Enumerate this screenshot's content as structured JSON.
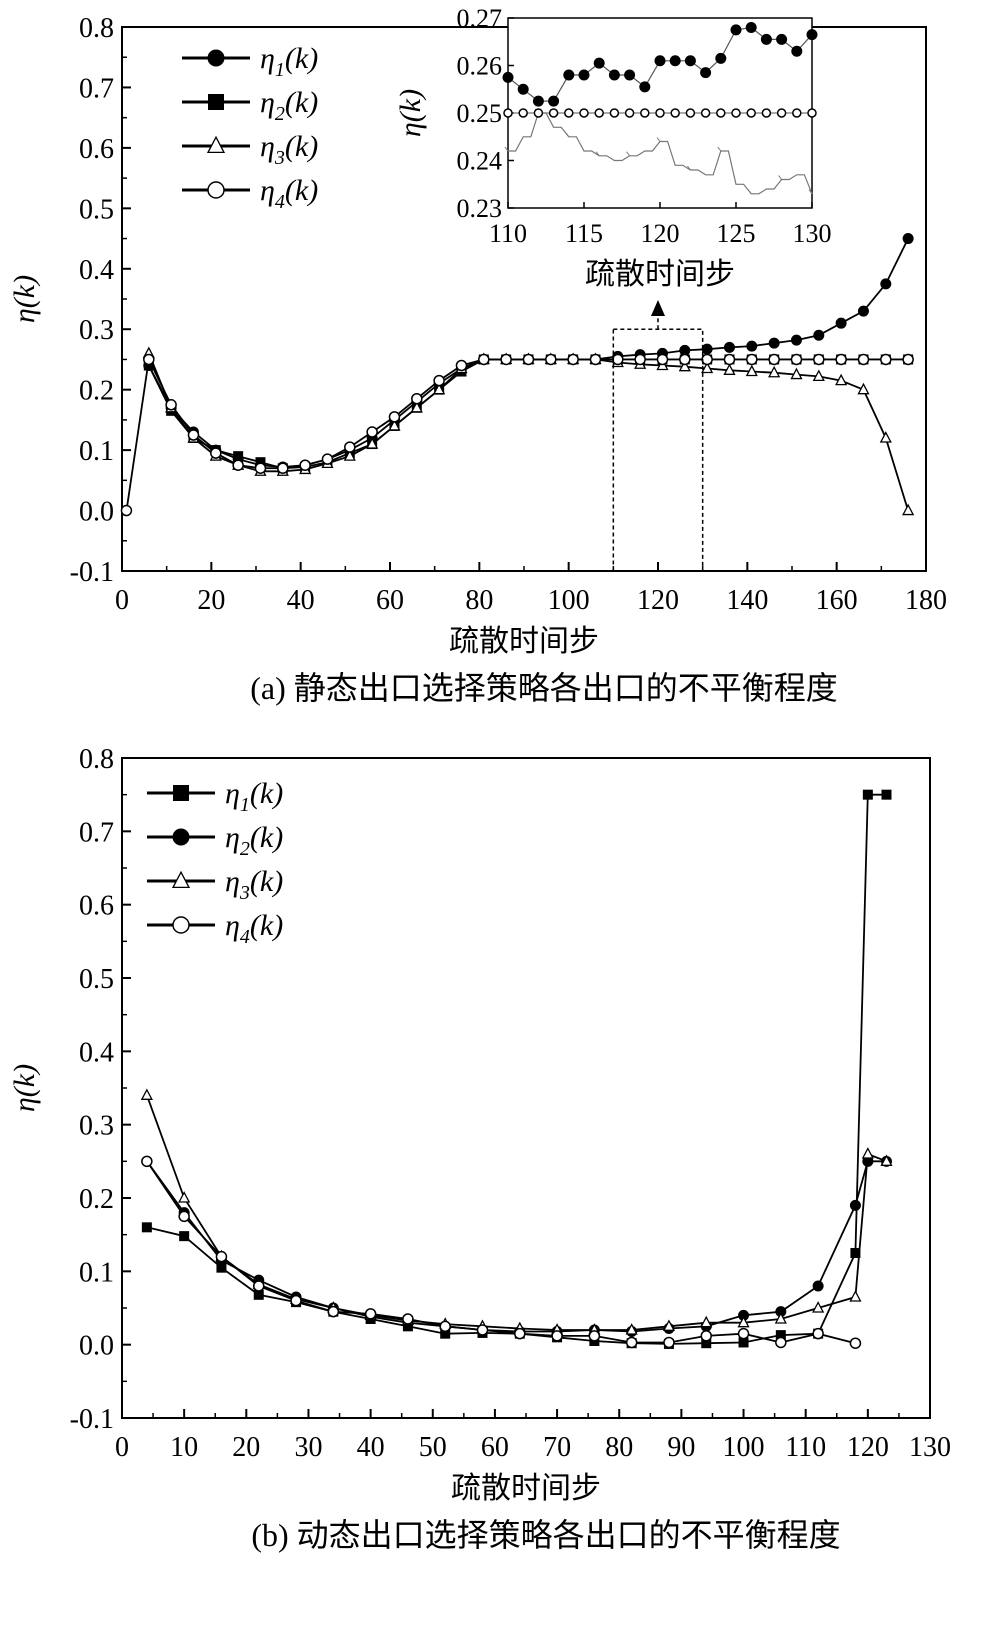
{
  "chart_data": [
    {
      "type": "line",
      "xlabel": "疏散时间步",
      "ylabel": "η(k)",
      "caption": "(a) 静态出口选择策略各出口的不平衡程度",
      "xlim": [
        0,
        180
      ],
      "ylim": [
        -0.1,
        0.8
      ],
      "xticks": [
        "0",
        "20",
        "40",
        "60",
        "80",
        "100",
        "120",
        "140",
        "160",
        "180"
      ],
      "yticks": [
        "-0.1",
        "0.0",
        "0.1",
        "0.2",
        "0.3",
        "0.4",
        "0.5",
        "0.6",
        "0.7",
        "0.8"
      ],
      "legend_position": "top-left",
      "series": [
        {
          "name": "η1(k)",
          "marker": "filled-circle",
          "x": [
            6,
            11,
            16,
            21,
            26,
            31,
            36,
            41,
            46,
            51,
            56,
            61,
            66,
            71,
            76,
            81,
            86,
            91,
            96,
            101,
            106,
            111,
            116,
            121,
            126,
            131,
            136,
            141,
            146,
            151,
            156,
            161,
            166,
            171,
            176
          ],
          "y": [
            0.24,
            0.17,
            0.13,
            0.1,
            0.085,
            0.075,
            0.072,
            0.075,
            0.085,
            0.1,
            0.12,
            0.15,
            0.18,
            0.21,
            0.235,
            0.25,
            0.25,
            0.25,
            0.25,
            0.25,
            0.25,
            0.255,
            0.258,
            0.26,
            0.265,
            0.267,
            0.27,
            0.272,
            0.277,
            0.282,
            0.29,
            0.31,
            0.33,
            0.375,
            0.45
          ]
        },
        {
          "name": "η2(k)",
          "marker": "filled-square",
          "x": [
            6,
            11,
            16,
            21,
            26,
            31,
            36,
            41,
            46,
            51,
            56,
            61,
            66,
            71,
            76,
            81,
            86,
            91,
            96,
            101,
            106,
            111,
            116,
            121,
            126,
            131,
            136,
            141,
            146,
            151,
            156,
            161,
            166,
            171,
            176
          ],
          "y": [
            0.24,
            0.165,
            0.12,
            0.1,
            0.09,
            0.08,
            0.07,
            0.072,
            0.08,
            0.095,
            0.11,
            0.14,
            0.17,
            0.2,
            0.23,
            0.25,
            0.25,
            0.25,
            0.25,
            0.25,
            0.25,
            0.25,
            0.25,
            0.25,
            0.25,
            0.25,
            0.25,
            0.25,
            0.25,
            0.25,
            0.25,
            0.25,
            0.25,
            0.25,
            0.25
          ]
        },
        {
          "name": "η3(k)",
          "marker": "open-triangle",
          "x": [
            6,
            11,
            16,
            21,
            26,
            31,
            36,
            41,
            46,
            51,
            56,
            61,
            66,
            71,
            76,
            81,
            86,
            91,
            96,
            101,
            106,
            111,
            116,
            121,
            126,
            131,
            136,
            141,
            146,
            151,
            156,
            161,
            166,
            171,
            176
          ],
          "y": [
            0.26,
            0.17,
            0.12,
            0.09,
            0.075,
            0.065,
            0.065,
            0.068,
            0.078,
            0.09,
            0.11,
            0.14,
            0.17,
            0.2,
            0.235,
            0.25,
            0.25,
            0.25,
            0.25,
            0.25,
            0.25,
            0.245,
            0.242,
            0.24,
            0.238,
            0.235,
            0.232,
            0.23,
            0.228,
            0.225,
            0.222,
            0.215,
            0.2,
            0.12,
            0.0
          ]
        },
        {
          "name": "η4(k)",
          "marker": "open-circle",
          "x": [
            1,
            6,
            11,
            16,
            21,
            26,
            31,
            36,
            41,
            46,
            51,
            56,
            61,
            66,
            71,
            76,
            81,
            86,
            91,
            96,
            101,
            106,
            111,
            116,
            121,
            126,
            131,
            136,
            141,
            146,
            151,
            156,
            161,
            166,
            171,
            176
          ],
          "y": [
            0.0,
            0.25,
            0.175,
            0.125,
            0.095,
            0.075,
            0.07,
            0.07,
            0.075,
            0.085,
            0.105,
            0.13,
            0.155,
            0.185,
            0.215,
            0.24,
            0.25,
            0.25,
            0.25,
            0.25,
            0.25,
            0.25,
            0.25,
            0.25,
            0.25,
            0.25,
            0.25,
            0.25,
            0.25,
            0.25,
            0.25,
            0.25,
            0.25,
            0.25,
            0.25,
            0.25
          ]
        }
      ],
      "annotation": "dashed box at x 110-130, y -0.1 to 0.3 with arrow to inset",
      "inset": {
        "type": "line",
        "xlabel": "疏散时间步",
        "ylabel": "η(k)",
        "xlim": [
          110,
          130
        ],
        "ylim": [
          0.23,
          0.27
        ],
        "xticks": [
          "110",
          "115",
          "120",
          "125",
          "130"
        ],
        "yticks": [
          "0.23",
          "0.24",
          "0.25",
          "0.26",
          "0.27"
        ],
        "series": [
          {
            "name": "η1(k)",
            "marker": "filled-circle",
            "x": [
              110,
              111,
              112,
              113,
              114,
              115,
              116,
              117,
              118,
              119,
              120,
              121,
              122,
              123,
              124,
              125,
              126,
              127,
              128,
              129,
              130
            ],
            "y": [
              0.2575,
              0.255,
              0.2525,
              0.2525,
              0.258,
              0.258,
              0.2605,
              0.258,
              0.258,
              0.2555,
              0.261,
              0.261,
              0.261,
              0.2585,
              0.2615,
              0.2675,
              0.268,
              0.2655,
              0.2655,
              0.263,
              0.2665
            ]
          },
          {
            "name": "η3(k)",
            "marker": "open-triangle",
            "x": [
              110,
              111,
              112,
              113,
              114,
              115,
              116,
              117,
              118,
              119,
              120,
              121,
              122,
              123,
              124,
              125,
              126,
              127,
              128,
              129,
              130
            ],
            "y": [
              0.242,
              0.245,
              0.25,
              0.247,
              0.245,
              0.242,
              0.241,
              0.24,
              0.241,
              0.242,
              0.244,
              0.239,
              0.238,
              0.237,
              0.242,
              0.235,
              0.233,
              0.234,
              0.236,
              0.237,
              0.233
            ]
          },
          {
            "name": "η4(k)",
            "marker": "open-circle",
            "x": [
              110,
              111,
              112,
              113,
              114,
              115,
              116,
              117,
              118,
              119,
              120,
              121,
              122,
              123,
              124,
              125,
              126,
              127,
              128,
              129,
              130
            ],
            "y": [
              0.25,
              0.25,
              0.25,
              0.25,
              0.25,
              0.25,
              0.25,
              0.25,
              0.25,
              0.25,
              0.25,
              0.25,
              0.25,
              0.25,
              0.25,
              0.25,
              0.25,
              0.25,
              0.25,
              0.25,
              0.25
            ]
          }
        ]
      }
    },
    {
      "type": "line",
      "xlabel": "疏散时间步",
      "ylabel": "η(k)",
      "caption": "(b) 动态出口选择策略各出口的不平衡程度",
      "xlim": [
        0,
        130
      ],
      "ylim": [
        -0.1,
        0.8
      ],
      "xticks": [
        "0",
        "10",
        "20",
        "30",
        "40",
        "50",
        "60",
        "70",
        "80",
        "90",
        "100",
        "110",
        "120",
        "130"
      ],
      "yticks": [
        "-0.1",
        "0.0",
        "0.1",
        "0.2",
        "0.3",
        "0.4",
        "0.5",
        "0.6",
        "0.7",
        "0.8"
      ],
      "legend_position": "top-left",
      "series": [
        {
          "name": "η1(k)",
          "marker": "filled-square",
          "x": [
            4,
            10,
            16,
            22,
            28,
            34,
            40,
            46,
            52,
            58,
            64,
            70,
            76,
            82,
            88,
            94,
            100,
            106,
            112,
            118,
            120,
            123
          ],
          "y": [
            0.16,
            0.148,
            0.105,
            0.068,
            0.058,
            0.045,
            0.035,
            0.025,
            0.015,
            0.016,
            0.015,
            0.01,
            0.005,
            0.002,
            0.001,
            0.002,
            0.003,
            0.013,
            0.015,
            0.125,
            0.75,
            0.75
          ]
        },
        {
          "name": "η2(k)",
          "marker": "filled-circle",
          "x": [
            4,
            10,
            16,
            22,
            28,
            34,
            40,
            46,
            52,
            58,
            64,
            70,
            76,
            82,
            88,
            94,
            100,
            106,
            112,
            118,
            120,
            123
          ],
          "y": [
            0.25,
            0.18,
            0.115,
            0.088,
            0.065,
            0.05,
            0.038,
            0.03,
            0.025,
            0.02,
            0.018,
            0.018,
            0.02,
            0.018,
            0.022,
            0.025,
            0.04,
            0.045,
            0.08,
            0.19,
            0.25,
            0.25
          ]
        },
        {
          "name": "η3(k)",
          "marker": "open-triangle",
          "x": [
            4,
            10,
            16,
            22,
            28,
            34,
            40,
            46,
            52,
            58,
            64,
            70,
            76,
            82,
            88,
            94,
            100,
            106,
            112,
            118,
            120,
            123
          ],
          "y": [
            0.34,
            0.2,
            0.12,
            0.082,
            0.062,
            0.05,
            0.04,
            0.033,
            0.028,
            0.025,
            0.022,
            0.02,
            0.02,
            0.02,
            0.025,
            0.03,
            0.03,
            0.035,
            0.05,
            0.065,
            0.26,
            0.25
          ]
        },
        {
          "name": "η4(k)",
          "marker": "open-circle",
          "x": [
            4,
            10,
            16,
            22,
            28,
            34,
            40,
            46,
            52,
            58,
            64,
            70,
            76,
            82,
            88,
            94,
            100,
            106,
            112,
            118
          ],
          "y": [
            0.25,
            0.175,
            0.12,
            0.08,
            0.06,
            0.045,
            0.042,
            0.035,
            0.025,
            0.02,
            0.015,
            0.012,
            0.012,
            0.003,
            0.003,
            0.012,
            0.015,
            0.003,
            0.015,
            0.002
          ]
        }
      ]
    }
  ]
}
